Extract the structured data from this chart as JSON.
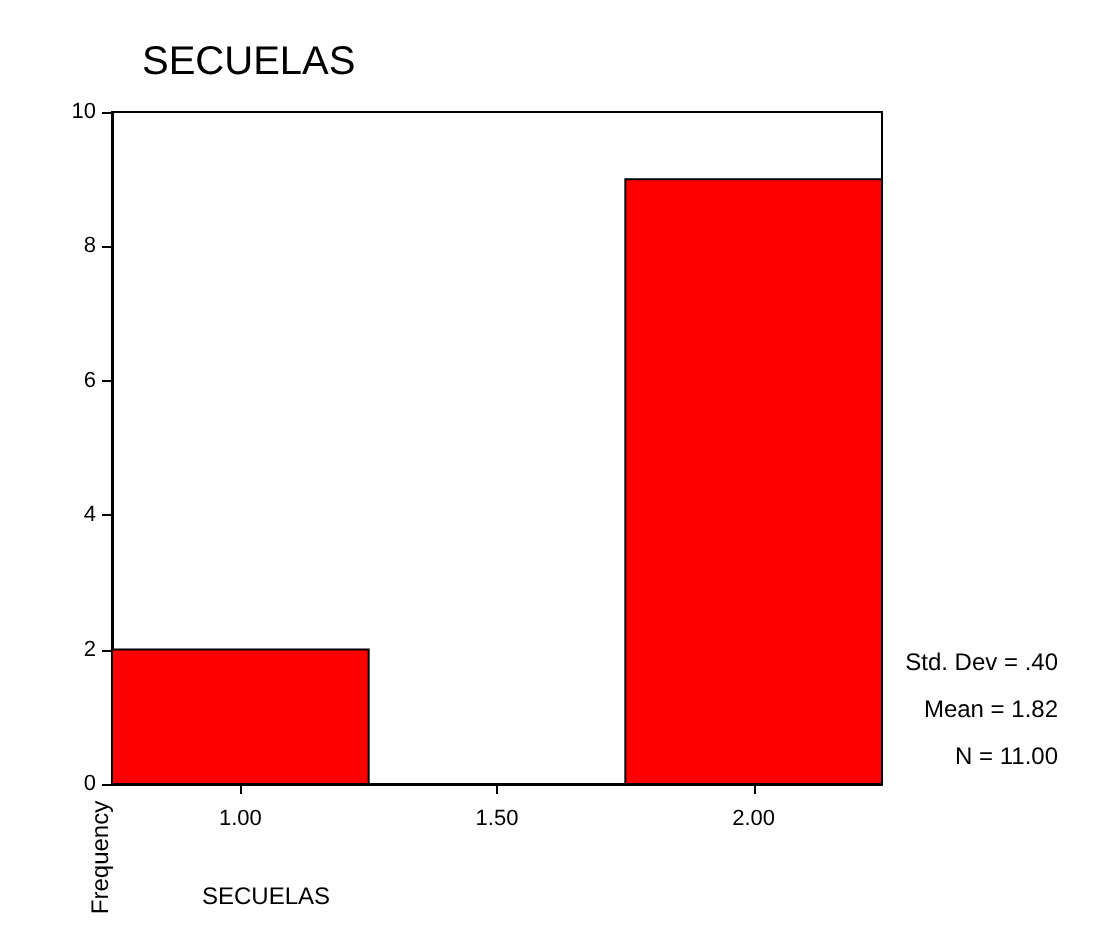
{
  "chart_data": {
    "type": "histogram",
    "title": "SECUELAS",
    "xlabel": "SECUELAS",
    "ylabel": "Frequency",
    "bins": [
      0.75,
      1.25,
      1.75,
      2.25
    ],
    "values": [
      2,
      0,
      9
    ],
    "color": "#ff0000",
    "xlim": [
      0.75,
      2.25
    ],
    "xticks": [
      {
        "value": 1,
        "label": "1.00"
      },
      {
        "value": 1.5,
        "label": "1.50"
      },
      {
        "value": 2,
        "label": "2.00"
      }
    ],
    "ylim": [
      0,
      10
    ],
    "yticks": [
      0,
      2,
      4,
      6,
      8,
      10
    ],
    "grid": false,
    "annotations": [
      "Std. Dev = .40",
      "Mean = 1.82",
      "N = 11.00"
    ]
  }
}
